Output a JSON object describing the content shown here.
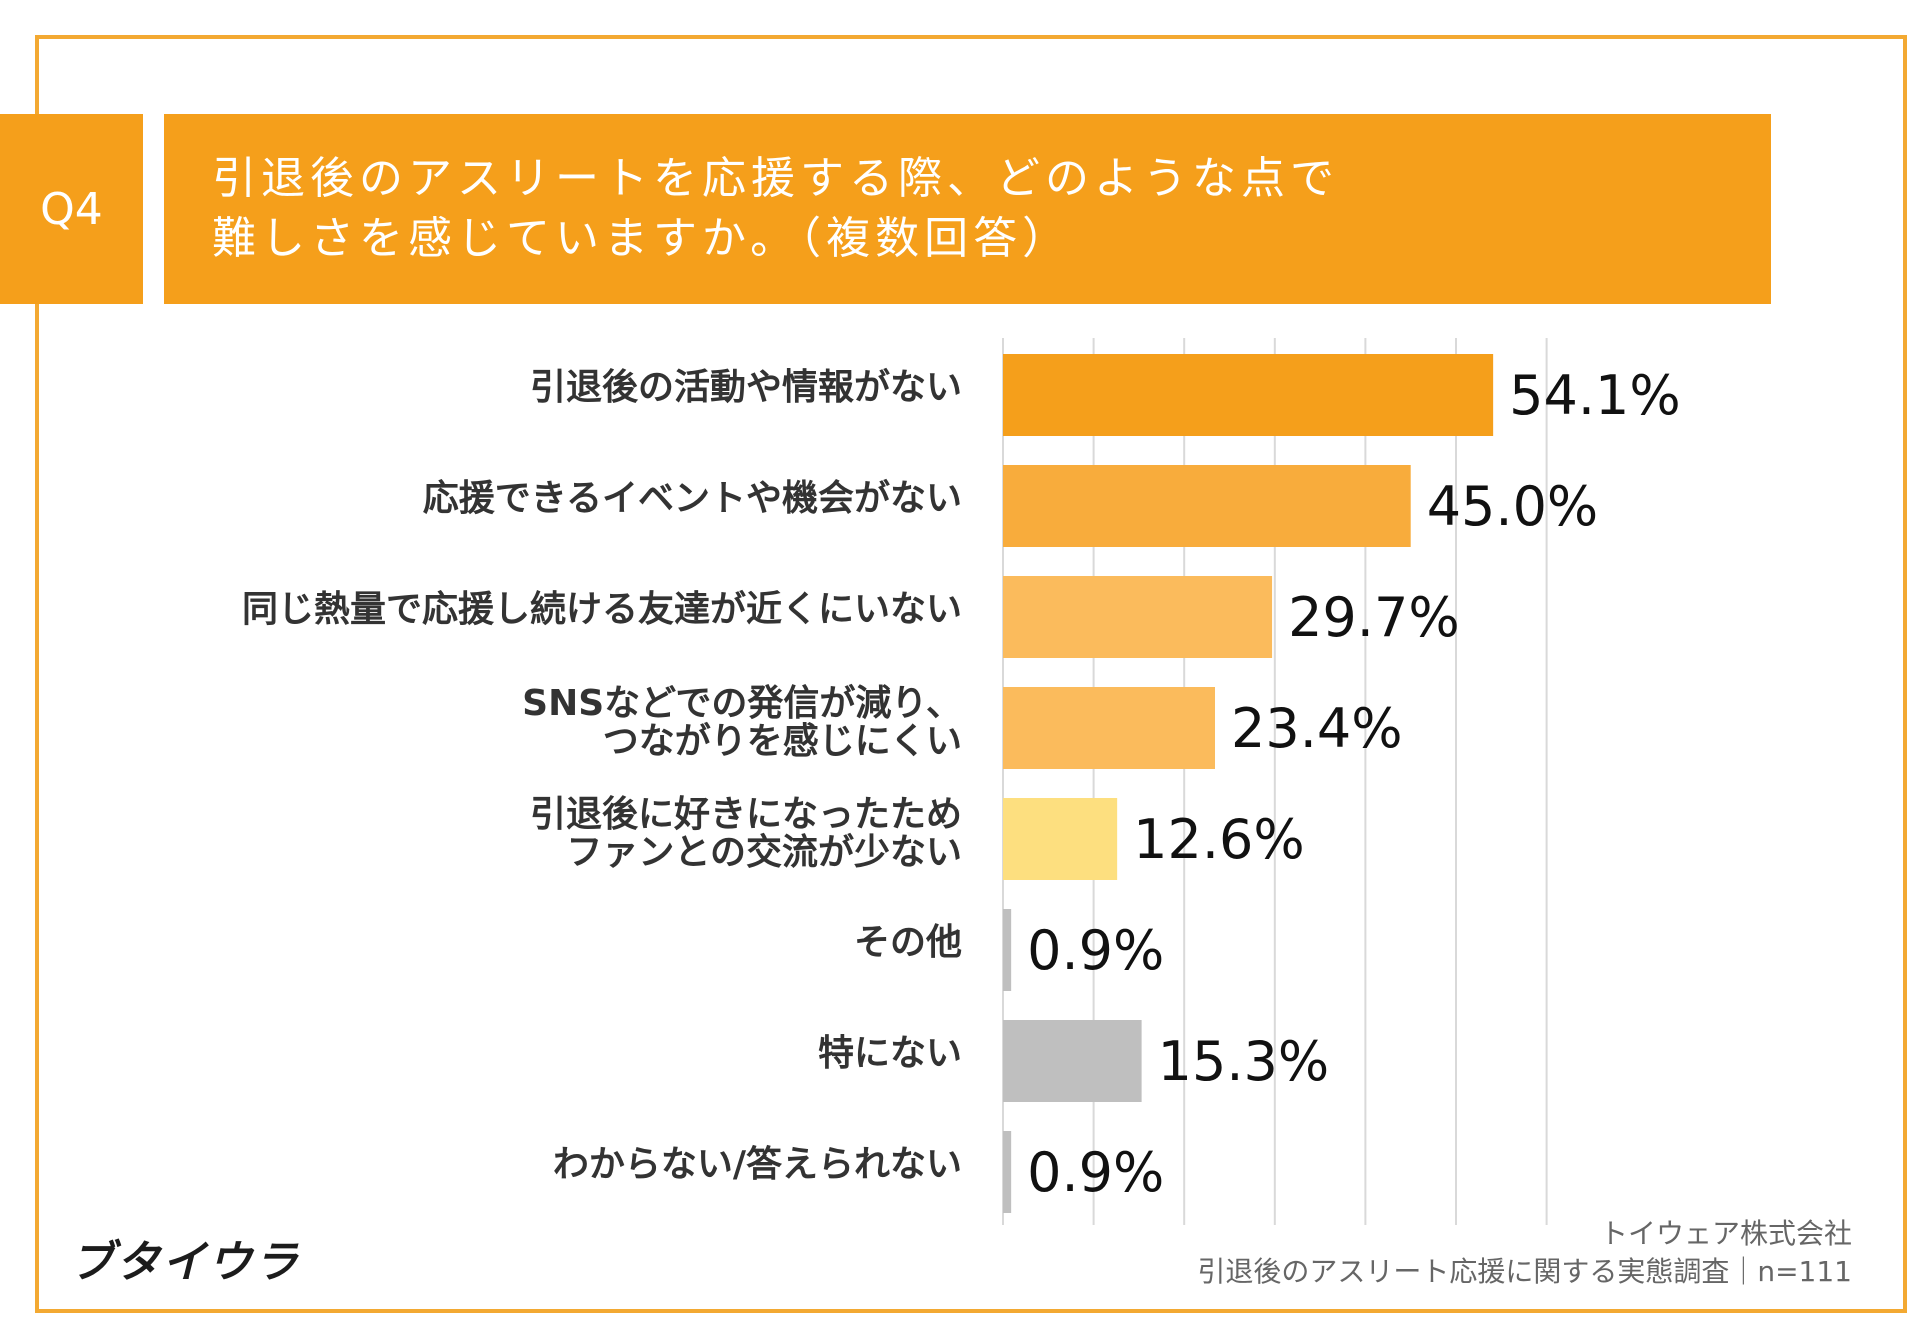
{
  "question": {
    "number": "Q4",
    "title_lines": [
      "引退後のアスリートを応援する際、どのような点で",
      "難しさを感じていますか。（複数回答）"
    ]
  },
  "chart_data": {
    "type": "bar",
    "orientation": "horizontal",
    "categories": [
      [
        "引退後の活動や情報がない"
      ],
      [
        "応援できるイベントや機会がない"
      ],
      [
        "同じ熱量で応援し続ける友達が近くにいない"
      ],
      [
        "SNSなどでの発信が減り、",
        "つながりを感じにくい"
      ],
      [
        "引退後に好きになったため",
        "ファンとの交流が少ない"
      ],
      [
        "その他"
      ],
      [
        "特にない"
      ],
      [
        "わからない/答えられない"
      ]
    ],
    "values": [
      54.1,
      45.0,
      29.7,
      23.4,
      12.6,
      0.9,
      15.3,
      0.9
    ],
    "value_labels": [
      "54.1%",
      "45.0%",
      "29.7%",
      "23.4%",
      "12.6%",
      "0.9%",
      "15.3%",
      "0.9%"
    ],
    "bar_colors": [
      "#f59f1b",
      "#f8ac3c",
      "#fbbb5c",
      "#fbbb5c",
      "#fddf7f",
      "#bfbfbf",
      "#bfbfbf",
      "#bfbfbf"
    ],
    "xlim": [
      0,
      60
    ],
    "grid": true
  },
  "footer": {
    "logo": "ブタイウラ",
    "company": "トイウェア株式会社",
    "survey": "引退後のアスリート応援に関する実態調査｜n=111"
  },
  "colors": {
    "accent": "#f59f1b",
    "frame": "#f3a932"
  }
}
